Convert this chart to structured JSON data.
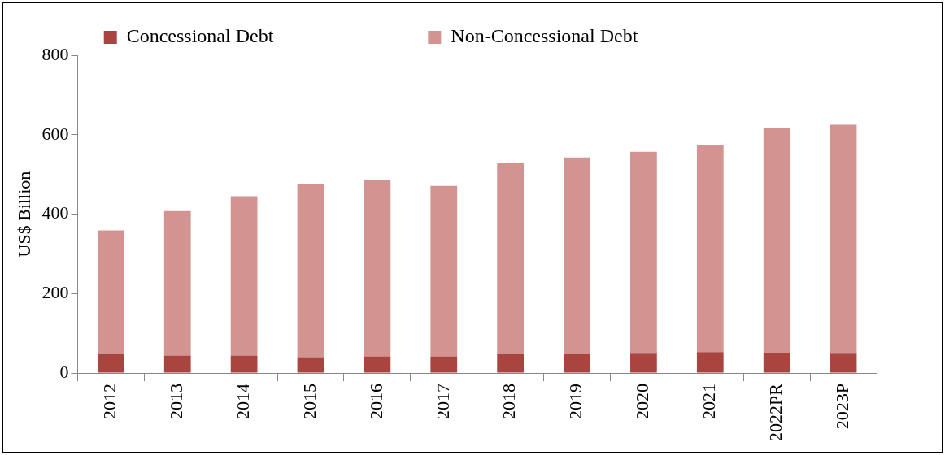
{
  "chart_data": {
    "type": "bar",
    "stacked": true,
    "ylabel": "US$ Billion",
    "categories": [
      "2012",
      "2013",
      "2014",
      "2015",
      "2016",
      "2017",
      "2018",
      "2019",
      "2020",
      "2021",
      "2022PR",
      "2023P"
    ],
    "series": [
      {
        "name": "Concessional Debt",
        "color": "#a9443f",
        "values": [
          47,
          44,
          44,
          40,
          42,
          42,
          47,
          47,
          49,
          53,
          51,
          49
        ]
      },
      {
        "name": "Non-Concessional Debt",
        "color": "#d39391",
        "values": [
          312,
          364,
          401,
          435,
          443,
          429,
          482,
          496,
          508,
          520,
          567,
          576
        ]
      }
    ],
    "ylim": [
      0,
      800
    ],
    "yticks": [
      0,
      200,
      400,
      600,
      800
    ],
    "grid": false,
    "legend": "top"
  }
}
